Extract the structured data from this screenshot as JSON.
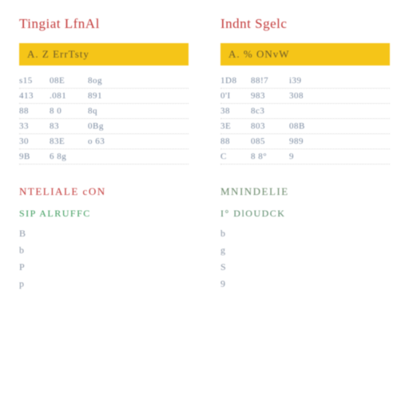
{
  "colors": {
    "title_red": "#c33a3a",
    "bar_yellow": "#f5c518",
    "bar_text": "#6b5a2a",
    "data_text": "#7a8aa0",
    "footer_green_left": "#3a9a5a",
    "footer_green_right": "#5a8a6a",
    "sub_right_green": "#6b8a6b",
    "letter_gray": "#8a95a5"
  },
  "left": {
    "title": "Tingiat  LfnAl",
    "bar": "A. Z ErrTsty",
    "rows": [
      {
        "c1": "s15",
        "c2": "08E",
        "c3": "8og"
      },
      {
        "c1": "413",
        "c2": ".081",
        "c3": "891"
      },
      {
        "c1": "88",
        "c2": "8 0",
        "c3": "8q"
      },
      {
        "c1": "33",
        "c2": "83",
        "c3": "0Bg"
      },
      {
        "c1": "30",
        "c2": "83E",
        "c3": "o 63"
      },
      {
        "c1": "9B",
        "c2": "6 8g",
        "c3": ""
      }
    ],
    "sub": "NTELIALE  cON",
    "footer": "SIP  ALRUFFC",
    "letters": [
      "B",
      "b",
      "P",
      "p"
    ]
  },
  "right": {
    "title": "Indnt  Sgelc",
    "bar": "A. %  ONvW",
    "rows": [
      {
        "c1": "1D8",
        "c2": "88!7",
        "c3": "i39"
      },
      {
        "c1": "0'I",
        "c2": "983",
        "c3": "308"
      },
      {
        "c1": "38",
        "c2": "8c3",
        "c3": ""
      },
      {
        "c1": "3E",
        "c2": "803",
        "c3": "08B"
      },
      {
        "c1": "88",
        "c2": "085",
        "c3": "989"
      },
      {
        "c1": "C",
        "c2": "8 8°",
        "c3": "9"
      }
    ],
    "sub": "MNINDELIE",
    "footer": "I° DlOUDCK",
    "letters": [
      "b",
      "g",
      "S",
      "9"
    ]
  }
}
